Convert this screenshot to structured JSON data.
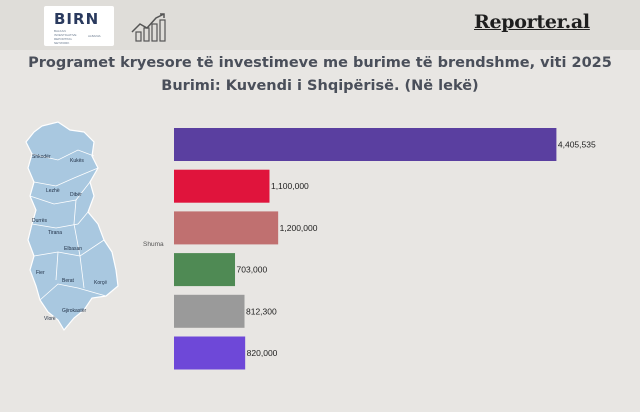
{
  "header": {
    "birn_logo": "BIRN",
    "birn_subtitle": "BALKAN INVESTIGATIVE REPORTING NETWORK",
    "birn_region": "ALBANIA",
    "reporter_logo": "Reporter.al"
  },
  "map": {
    "cities": [
      "Shkodër",
      "Kukës",
      "Lezhë",
      "Dibër",
      "Durrës",
      "Tirana",
      "Elbasan",
      "Fier",
      "Berat",
      "Korçë",
      "Gjirokastër",
      "Vlorë"
    ],
    "fill_color": "#a9c8e0",
    "stroke_color": "#ffffff"
  },
  "chart_data": {
    "type": "bar",
    "orientation": "horizontal",
    "title": "Programet kryesore të investimeve me burime të brendshme, viti 2025",
    "subtitle": "Burimi: Kuvendi i Shqipërisë. (Në lekë)",
    "ylabel": "Shuma",
    "xlim": [
      0,
      5000000
    ],
    "xticks": [
      0,
      500000,
      1000000,
      1500000,
      2000000,
      2500000,
      3000000,
      3500000,
      4000000,
      4500000,
      5000000
    ],
    "xtick_labels": [
      "0",
      "0.5M",
      "1M",
      "1.5M",
      "2M",
      "2.5M",
      "3M",
      "3.5M",
      "4M",
      "4.5M",
      "5M"
    ],
    "values": [
      4405535,
      1100000,
      1200000,
      703000,
      812300,
      820000
    ],
    "value_labels": [
      "4,405,535",
      "1,100,000",
      "1,200,000",
      "703,000",
      "812,300",
      "820,000"
    ],
    "colors": [
      "#5a3fa0",
      "#e0143c",
      "#c07070",
      "#4f8a54",
      "#9a9a9a",
      "#6e48d8"
    ],
    "grid": false,
    "legend": false
  }
}
